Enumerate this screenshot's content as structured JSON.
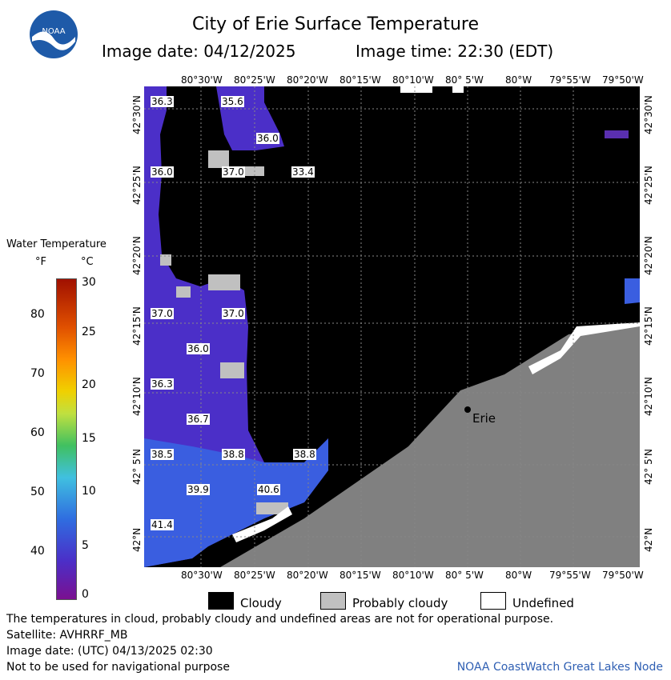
{
  "header": {
    "title": "City of Erie Surface Temperature",
    "date_label": "Image date: 04/12/2025",
    "time_label": "Image time: 22:30 (EDT)",
    "logo_text": "NOAA"
  },
  "map": {
    "lon_ticks_top": [
      "80°30'W",
      "80°25'W",
      "80°20'W",
      "80°15'W",
      "80°10'W",
      "80° 5'W",
      "80°W",
      "79°55'W",
      "79°50'W"
    ],
    "lon_ticks_bottom": [
      "80°30'W",
      "80°25'W",
      "80°20'W",
      "80°15'W",
      "80°10'W",
      "80° 5'W",
      "80°W",
      "79°55'W",
      "79°50'W"
    ],
    "lat_ticks": [
      "42°30'N",
      "42°25'N",
      "42°20'N",
      "42°15'N",
      "42°10'N",
      "42° 5'N",
      "42°N"
    ],
    "city_label": "Erie",
    "temp_labels": [
      "36.3",
      "35.6",
      "36.0",
      "36.0",
      "37.0",
      "33.4",
      "37.0",
      "37.0",
      "36.0",
      "36.3",
      "36.7",
      "38.5",
      "38.8",
      "38.8",
      "39.9",
      "40.6",
      "41.4"
    ],
    "colors": {
      "cloud": "#000000",
      "land": "#808080",
      "water_cold": "#4b2fc8",
      "water_warm": "#2f6de0",
      "probably_cloudy": "#c0c0c0",
      "undefined": "#ffffff"
    }
  },
  "legend": {
    "title": "Water Temperature",
    "unit_f": "°F",
    "unit_c": "°C",
    "f_ticks": [
      "80",
      "70",
      "60",
      "50",
      "40"
    ],
    "c_ticks": [
      "30",
      "25",
      "20",
      "15",
      "10",
      "5",
      "0"
    ]
  },
  "key": {
    "cloudy": "Cloudy",
    "probably_cloudy": "Probably cloudy",
    "undefined": "Undefined"
  },
  "footer": {
    "note": "The temperatures in cloud, probably cloudy and undefined areas are not for operational purpose.",
    "satellite": "Satellite: AVHRRF_MB",
    "utc_date": "Image date: (UTC) 04/13/2025  02:30",
    "nav_warning": "Not to be used for navigational purpose",
    "credit": "NOAA CoastWatch Great Lakes Node"
  }
}
